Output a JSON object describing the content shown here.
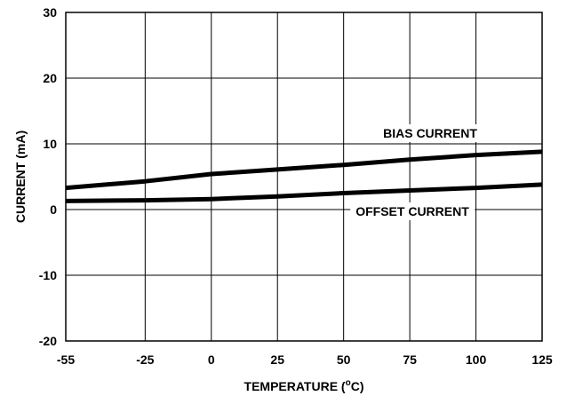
{
  "chart_data": {
    "type": "line",
    "xlabel": "TEMPERATURE (",
    "xlabel_sup": "o",
    "xlabel_end": "C)",
    "ylabel": "CURRENT (mA)",
    "xlim": [
      -55,
      125
    ],
    "ylim": [
      -20,
      30
    ],
    "x_ticks": [
      -55,
      -25,
      0,
      25,
      50,
      75,
      100,
      125
    ],
    "x_tick_labels": [
      "-55",
      "-25",
      "0",
      "25",
      "50",
      "75",
      "100",
      "125"
    ],
    "y_ticks": [
      -20,
      -10,
      0,
      10,
      20,
      30
    ],
    "y_tick_labels": [
      "-20",
      "-10",
      "0",
      "10",
      "20",
      "30"
    ],
    "grid": true,
    "series": [
      {
        "name": "BIAS CURRENT",
        "x": [
          -55,
          -25,
          0,
          25,
          50,
          75,
          100,
          125
        ],
        "y": [
          3.3,
          4.3,
          5.4,
          6.1,
          6.8,
          7.6,
          8.3,
          8.8
        ]
      },
      {
        "name": "OFFSET CURRENT",
        "x": [
          -55,
          -25,
          0,
          25,
          50,
          75,
          100,
          125
        ],
        "y": [
          1.3,
          1.4,
          1.6,
          2.0,
          2.5,
          2.9,
          3.3,
          3.8
        ]
      }
    ],
    "annotations": [
      {
        "text": "BIAS CURRENT",
        "series": 0
      },
      {
        "text": "OFFSET CURRENT",
        "series": 1
      }
    ]
  }
}
